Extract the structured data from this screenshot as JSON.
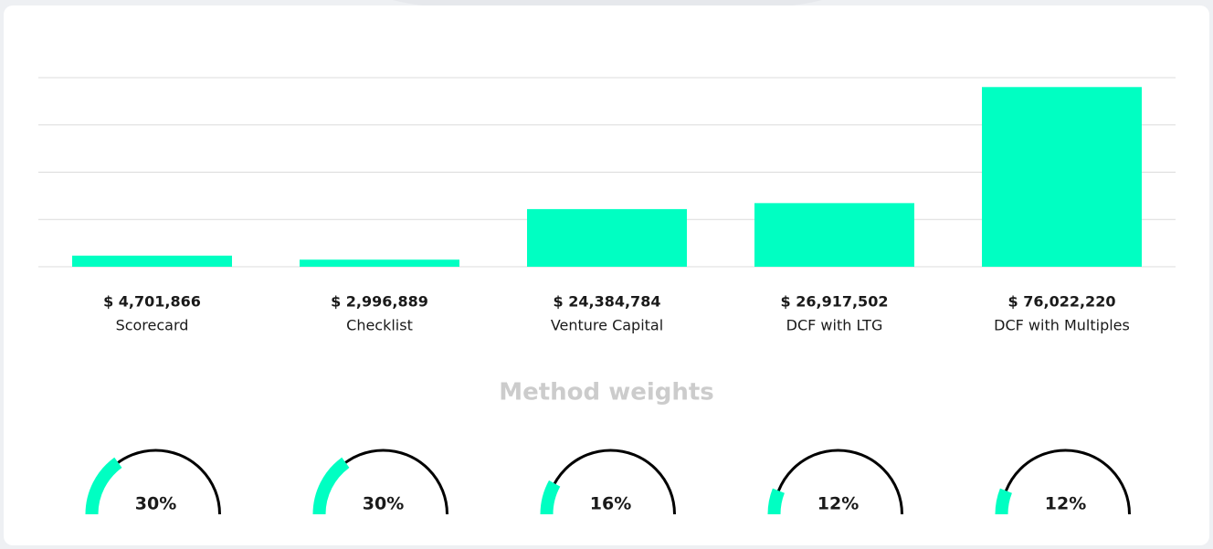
{
  "chart_data": [
    {
      "type": "bar",
      "categories": [
        "Scorecard",
        "Checklist",
        "Venture Capital",
        "DCF with LTG",
        "DCF with Multiples"
      ],
      "values": [
        4701866,
        2996889,
        24384784,
        26917502,
        76022220
      ],
      "value_labels": [
        "$ 4,701,866",
        "$ 2,996,889",
        "$ 24,384,784",
        "$ 26,917,502",
        "$ 76,022,220"
      ],
      "color": "#00ffc2",
      "ylim": [
        0,
        80000000
      ],
      "yticks": [
        0,
        20000000,
        40000000,
        60000000,
        80000000
      ],
      "grid": true
    },
    {
      "type": "gauge",
      "title": "Method weights",
      "values": [
        30,
        30,
        16,
        12,
        12
      ],
      "value_labels": [
        "30%",
        "30%",
        "16%",
        "12%",
        "12%"
      ],
      "color": "#00ffc2",
      "ylim": [
        0,
        100
      ]
    }
  ]
}
